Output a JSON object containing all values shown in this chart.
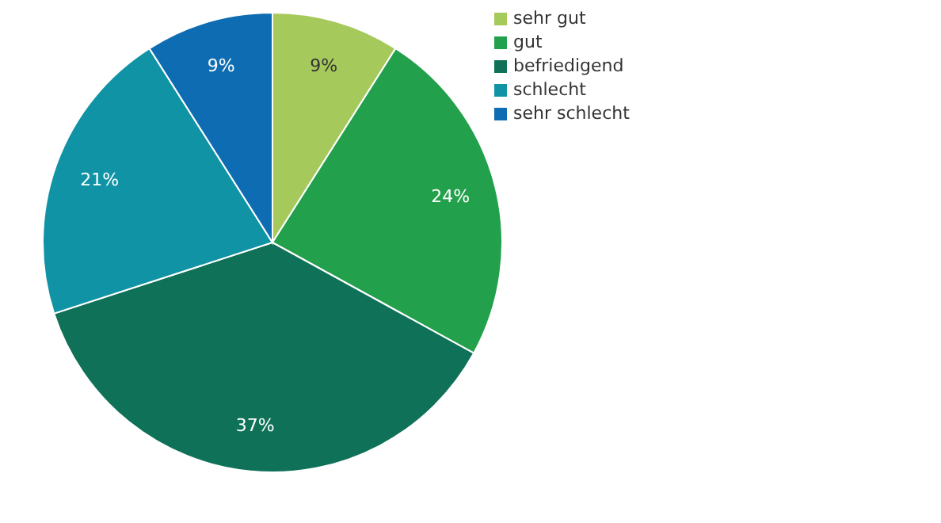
{
  "chart_data": {
    "type": "pie",
    "categories": [
      "sehr gut",
      "gut",
      "befriedigend",
      "schlecht",
      "sehr schlecht"
    ],
    "values": [
      9,
      24,
      37,
      21,
      9
    ],
    "value_labels": [
      "9%",
      "24%",
      "37%",
      "21%",
      "9%"
    ],
    "colors": [
      "#a6c95c",
      "#22a04b",
      "#0e7158",
      "#1193a6",
      "#0e6cb2"
    ],
    "legend": "top right"
  }
}
